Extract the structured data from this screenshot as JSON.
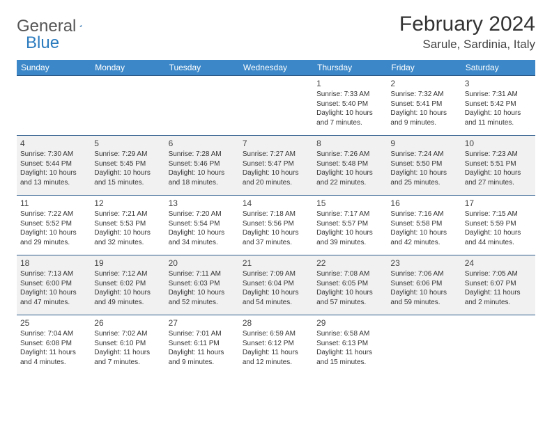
{
  "logo": {
    "part1": "General",
    "part2": "Blue"
  },
  "title": "February 2024",
  "location": "Sarule, Sardinia, Italy",
  "colors": {
    "header_bg": "#3b87c8",
    "header_row_border": "#2a5a8a",
    "alt_row_bg": "#f1f1f1",
    "logo_blue": "#2b7bbf"
  },
  "weekdays": [
    "Sunday",
    "Monday",
    "Tuesday",
    "Wednesday",
    "Thursday",
    "Friday",
    "Saturday"
  ],
  "weeks": [
    [
      null,
      null,
      null,
      null,
      {
        "n": "1",
        "sr": "Sunrise: 7:33 AM",
        "ss": "Sunset: 5:40 PM",
        "d1": "Daylight: 10 hours",
        "d2": "and 7 minutes."
      },
      {
        "n": "2",
        "sr": "Sunrise: 7:32 AM",
        "ss": "Sunset: 5:41 PM",
        "d1": "Daylight: 10 hours",
        "d2": "and 9 minutes."
      },
      {
        "n": "3",
        "sr": "Sunrise: 7:31 AM",
        "ss": "Sunset: 5:42 PM",
        "d1": "Daylight: 10 hours",
        "d2": "and 11 minutes."
      }
    ],
    [
      {
        "n": "4",
        "sr": "Sunrise: 7:30 AM",
        "ss": "Sunset: 5:44 PM",
        "d1": "Daylight: 10 hours",
        "d2": "and 13 minutes."
      },
      {
        "n": "5",
        "sr": "Sunrise: 7:29 AM",
        "ss": "Sunset: 5:45 PM",
        "d1": "Daylight: 10 hours",
        "d2": "and 15 minutes."
      },
      {
        "n": "6",
        "sr": "Sunrise: 7:28 AM",
        "ss": "Sunset: 5:46 PM",
        "d1": "Daylight: 10 hours",
        "d2": "and 18 minutes."
      },
      {
        "n": "7",
        "sr": "Sunrise: 7:27 AM",
        "ss": "Sunset: 5:47 PM",
        "d1": "Daylight: 10 hours",
        "d2": "and 20 minutes."
      },
      {
        "n": "8",
        "sr": "Sunrise: 7:26 AM",
        "ss": "Sunset: 5:48 PM",
        "d1": "Daylight: 10 hours",
        "d2": "and 22 minutes."
      },
      {
        "n": "9",
        "sr": "Sunrise: 7:24 AM",
        "ss": "Sunset: 5:50 PM",
        "d1": "Daylight: 10 hours",
        "d2": "and 25 minutes."
      },
      {
        "n": "10",
        "sr": "Sunrise: 7:23 AM",
        "ss": "Sunset: 5:51 PM",
        "d1": "Daylight: 10 hours",
        "d2": "and 27 minutes."
      }
    ],
    [
      {
        "n": "11",
        "sr": "Sunrise: 7:22 AM",
        "ss": "Sunset: 5:52 PM",
        "d1": "Daylight: 10 hours",
        "d2": "and 29 minutes."
      },
      {
        "n": "12",
        "sr": "Sunrise: 7:21 AM",
        "ss": "Sunset: 5:53 PM",
        "d1": "Daylight: 10 hours",
        "d2": "and 32 minutes."
      },
      {
        "n": "13",
        "sr": "Sunrise: 7:20 AM",
        "ss": "Sunset: 5:54 PM",
        "d1": "Daylight: 10 hours",
        "d2": "and 34 minutes."
      },
      {
        "n": "14",
        "sr": "Sunrise: 7:18 AM",
        "ss": "Sunset: 5:56 PM",
        "d1": "Daylight: 10 hours",
        "d2": "and 37 minutes."
      },
      {
        "n": "15",
        "sr": "Sunrise: 7:17 AM",
        "ss": "Sunset: 5:57 PM",
        "d1": "Daylight: 10 hours",
        "d2": "and 39 minutes."
      },
      {
        "n": "16",
        "sr": "Sunrise: 7:16 AM",
        "ss": "Sunset: 5:58 PM",
        "d1": "Daylight: 10 hours",
        "d2": "and 42 minutes."
      },
      {
        "n": "17",
        "sr": "Sunrise: 7:15 AM",
        "ss": "Sunset: 5:59 PM",
        "d1": "Daylight: 10 hours",
        "d2": "and 44 minutes."
      }
    ],
    [
      {
        "n": "18",
        "sr": "Sunrise: 7:13 AM",
        "ss": "Sunset: 6:00 PM",
        "d1": "Daylight: 10 hours",
        "d2": "and 47 minutes."
      },
      {
        "n": "19",
        "sr": "Sunrise: 7:12 AM",
        "ss": "Sunset: 6:02 PM",
        "d1": "Daylight: 10 hours",
        "d2": "and 49 minutes."
      },
      {
        "n": "20",
        "sr": "Sunrise: 7:11 AM",
        "ss": "Sunset: 6:03 PM",
        "d1": "Daylight: 10 hours",
        "d2": "and 52 minutes."
      },
      {
        "n": "21",
        "sr": "Sunrise: 7:09 AM",
        "ss": "Sunset: 6:04 PM",
        "d1": "Daylight: 10 hours",
        "d2": "and 54 minutes."
      },
      {
        "n": "22",
        "sr": "Sunrise: 7:08 AM",
        "ss": "Sunset: 6:05 PM",
        "d1": "Daylight: 10 hours",
        "d2": "and 57 minutes."
      },
      {
        "n": "23",
        "sr": "Sunrise: 7:06 AM",
        "ss": "Sunset: 6:06 PM",
        "d1": "Daylight: 10 hours",
        "d2": "and 59 minutes."
      },
      {
        "n": "24",
        "sr": "Sunrise: 7:05 AM",
        "ss": "Sunset: 6:07 PM",
        "d1": "Daylight: 11 hours",
        "d2": "and 2 minutes."
      }
    ],
    [
      {
        "n": "25",
        "sr": "Sunrise: 7:04 AM",
        "ss": "Sunset: 6:08 PM",
        "d1": "Daylight: 11 hours",
        "d2": "and 4 minutes."
      },
      {
        "n": "26",
        "sr": "Sunrise: 7:02 AM",
        "ss": "Sunset: 6:10 PM",
        "d1": "Daylight: 11 hours",
        "d2": "and 7 minutes."
      },
      {
        "n": "27",
        "sr": "Sunrise: 7:01 AM",
        "ss": "Sunset: 6:11 PM",
        "d1": "Daylight: 11 hours",
        "d2": "and 9 minutes."
      },
      {
        "n": "28",
        "sr": "Sunrise: 6:59 AM",
        "ss": "Sunset: 6:12 PM",
        "d1": "Daylight: 11 hours",
        "d2": "and 12 minutes."
      },
      {
        "n": "29",
        "sr": "Sunrise: 6:58 AM",
        "ss": "Sunset: 6:13 PM",
        "d1": "Daylight: 11 hours",
        "d2": "and 15 minutes."
      },
      null,
      null
    ]
  ]
}
